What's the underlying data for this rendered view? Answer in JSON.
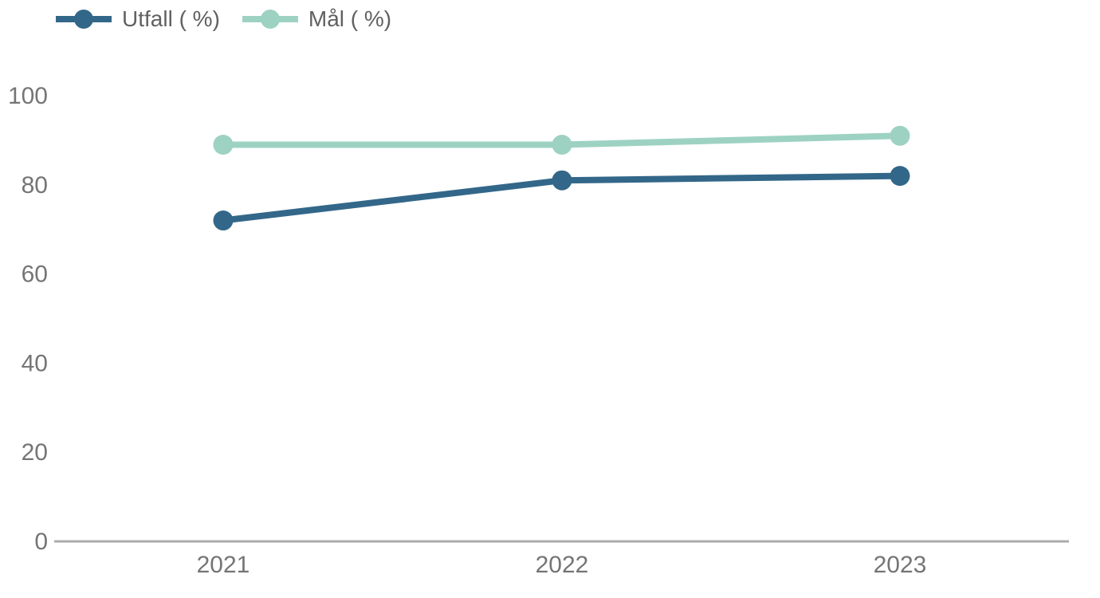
{
  "chart_data": {
    "type": "line",
    "title": "",
    "categories": [
      "2021",
      "2022",
      "2023"
    ],
    "series": [
      {
        "id": "utfall",
        "name": "Utfall ( %)",
        "values": [
          72,
          81,
          82
        ],
        "color": "#336789"
      },
      {
        "id": "mal",
        "name": "Mål ( %)",
        "values": [
          89,
          89,
          91
        ],
        "color": "#9dd2c2"
      }
    ],
    "xlabel": "",
    "ylabel": "",
    "ylim": [
      0,
      100
    ],
    "yticks": [
      0,
      20,
      40,
      60,
      80,
      100
    ],
    "grid": false,
    "legend_position": "top-left",
    "axis_color": "#ababab",
    "tick_label_color": "#757575",
    "legend_text_color": "#616161",
    "background_color": "#ffffff"
  }
}
